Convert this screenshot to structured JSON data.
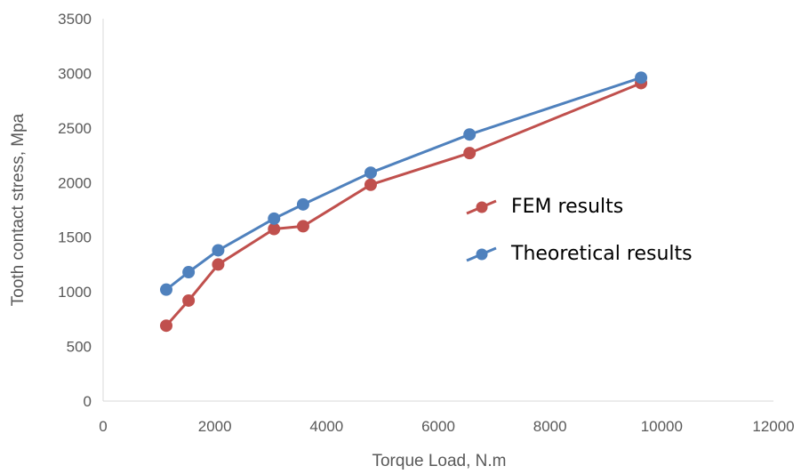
{
  "chart_data": {
    "type": "line",
    "xlabel": "Torque Load, N.m",
    "ylabel": "Tooth contact stress, Mpa",
    "xlim": [
      0,
      12000
    ],
    "ylim": [
      0,
      3500
    ],
    "xticks": [
      0,
      2000,
      4000,
      6000,
      8000,
      10000,
      12000
    ],
    "yticks": [
      0,
      500,
      1000,
      1500,
      2000,
      2500,
      3000,
      3500
    ],
    "grid": false,
    "legend_position": "right",
    "series": [
      {
        "name": "FEM results",
        "color": "#c0504d",
        "x": [
          1130,
          1530,
          2060,
          3060,
          3580,
          4790,
          6560,
          9630
        ],
        "y": [
          690,
          920,
          1250,
          1575,
          1600,
          1980,
          2270,
          2910
        ]
      },
      {
        "name": "Theoretical results",
        "color": "#4f81bd",
        "x": [
          1130,
          1530,
          2060,
          3060,
          3580,
          4790,
          6560,
          9630
        ],
        "y": [
          1020,
          1180,
          1380,
          1670,
          1800,
          2090,
          2440,
          2960
        ]
      }
    ]
  }
}
